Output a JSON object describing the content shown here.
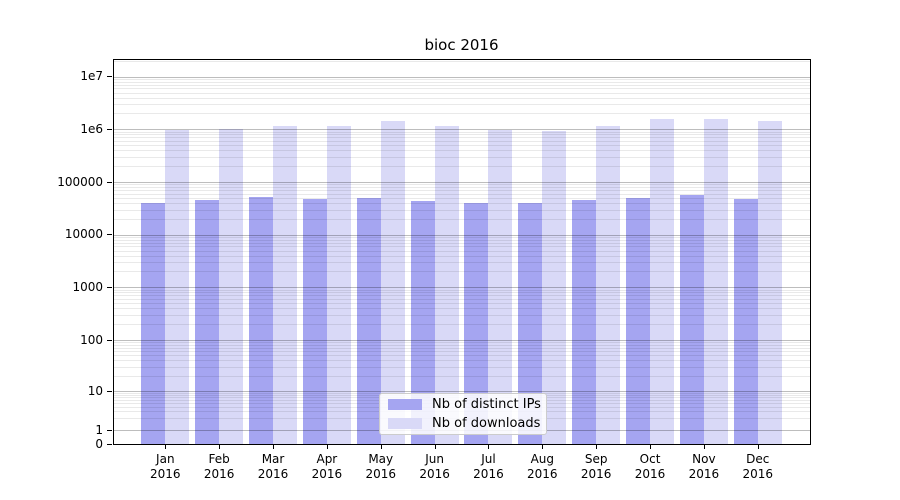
{
  "title": "bioc 2016",
  "chart_data": {
    "type": "bar",
    "title": "bioc 2016",
    "categories": [
      "Jan 2016",
      "Feb 2016",
      "Mar 2016",
      "Apr 2016",
      "May 2016",
      "Jun 2016",
      "Jul 2016",
      "Aug 2016",
      "Sep 2016",
      "Oct 2016",
      "Nov 2016",
      "Dec 2016"
    ],
    "x_tick_months": [
      "Jan",
      "Feb",
      "Mar",
      "Apr",
      "May",
      "Jun",
      "Jul",
      "Aug",
      "Sep",
      "Oct",
      "Nov",
      "Dec"
    ],
    "x_tick_year": "2016",
    "series": [
      {
        "name": "Nb of distinct IPs",
        "color": "#a5a5f1",
        "values": [
          40000,
          45000,
          52000,
          47500,
          49500,
          43500,
          40500,
          40000,
          45000,
          50000,
          56500,
          47500
        ]
      },
      {
        "name": "Nb of downloads",
        "color": "#d9d9f7",
        "values": [
          970000,
          1010000,
          1150000,
          1160000,
          1440000,
          1170000,
          990000,
          920000,
          1180000,
          1600000,
          1540000,
          1430000
        ]
      }
    ],
    "yscale": "symlog",
    "y_ticks": [
      {
        "value": 0,
        "label": "0"
      },
      {
        "value": 1,
        "label": "1"
      },
      {
        "value": 10,
        "label": "10"
      },
      {
        "value": 100,
        "label": "100"
      },
      {
        "value": 1000,
        "label": "1000"
      },
      {
        "value": 10000,
        "label": "10000"
      },
      {
        "value": 100000,
        "label": "100000"
      },
      {
        "value": 1000000,
        "label": "1e6"
      },
      {
        "value": 10000000,
        "label": "1e7"
      }
    ],
    "ylim": [
      0,
      22000000
    ],
    "grid": true,
    "legend_position": "lower center",
    "grid_major_color": "#bfbfbf",
    "grid_minor_color": "#ebebeb"
  }
}
